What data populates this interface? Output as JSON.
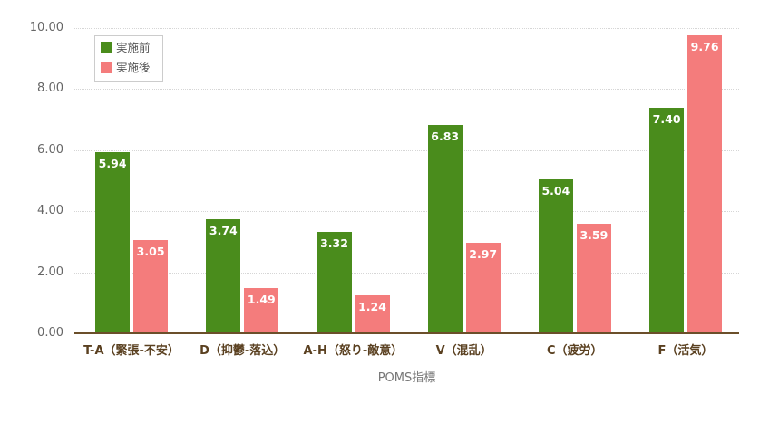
{
  "chart_data": {
    "type": "bar",
    "title": "",
    "xlabel": "POMS指標",
    "ylabel": "",
    "ylim": [
      0,
      10
    ],
    "yticks": [
      "0.00",
      "2.00",
      "4.00",
      "6.00",
      "8.00",
      "10.00"
    ],
    "categories": [
      "T-A（緊張-不安）",
      "D（抑鬱-落込）",
      "A-H（怒り-敵意）",
      "V（混乱）",
      "C（疲労）",
      "F（活気）"
    ],
    "series": [
      {
        "name": "実施前",
        "color": "#4a8c1c",
        "values": [
          5.94,
          3.74,
          3.32,
          6.83,
          5.04,
          7.4
        ],
        "labels": [
          "5.94",
          "3.74",
          "3.32",
          "6.83",
          "5.04",
          "7.40"
        ]
      },
      {
        "name": "実施後",
        "color": "#f47c7c",
        "values": [
          3.05,
          1.49,
          1.24,
          2.97,
          3.59,
          9.76
        ],
        "labels": [
          "3.05",
          "1.49",
          "1.24",
          "2.97",
          "3.59",
          "9.76"
        ]
      }
    ],
    "legend_position": "top-left inside",
    "grid": "horizontal dotted"
  }
}
